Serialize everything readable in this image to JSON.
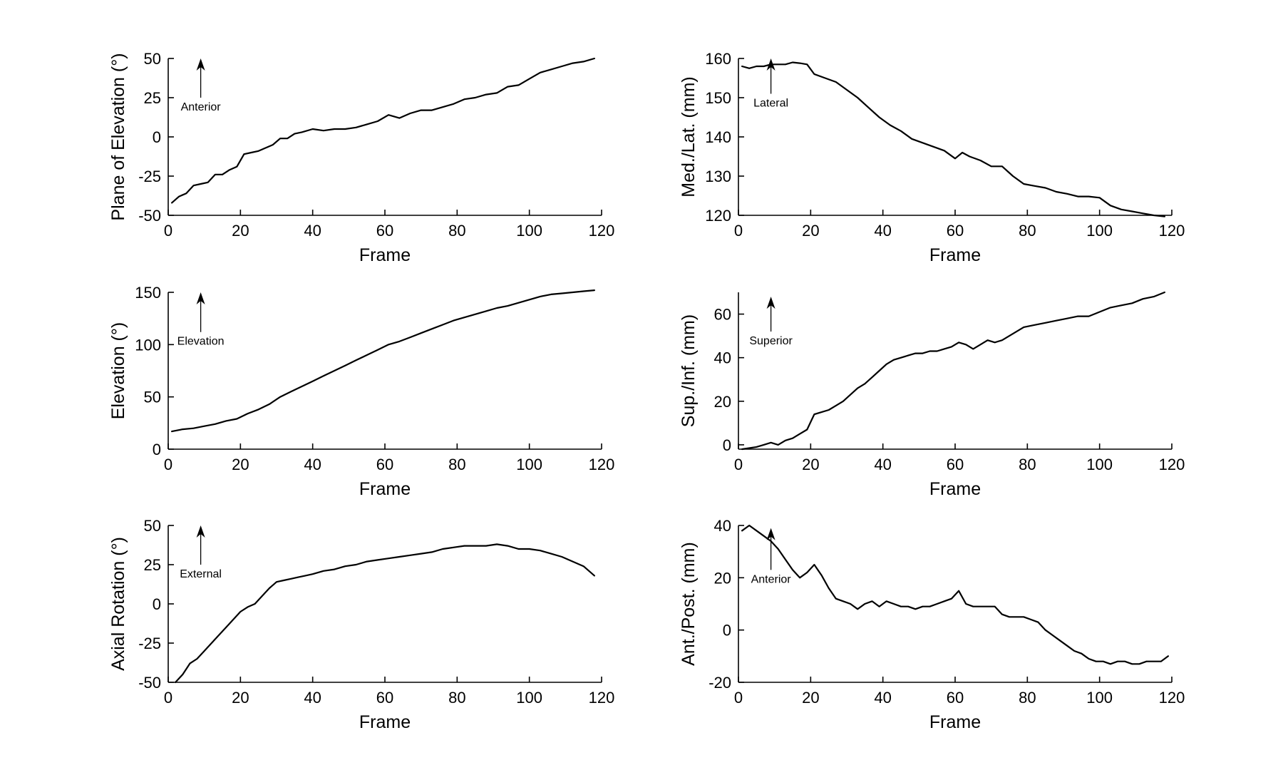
{
  "chart_data": [
    {
      "type": "line",
      "title": "",
      "xlabel": "Frame",
      "ylabel": "Plane of Elevation (°)",
      "xlim": [
        0,
        120
      ],
      "ylim": [
        -50,
        50
      ],
      "xticks": [
        0,
        20,
        40,
        60,
        80,
        100,
        120
      ],
      "yticks": [
        -50,
        -25,
        0,
        25,
        50
      ],
      "annotation": {
        "label": "Anterior",
        "x": 9,
        "y_from": 25,
        "y_to": 50
      },
      "series": [
        {
          "name": "Plane of Elevation",
          "x": [
            1,
            3,
            5,
            7,
            9,
            11,
            13,
            15,
            17,
            19,
            21,
            23,
            25,
            27,
            29,
            31,
            33,
            35,
            37,
            40,
            43,
            46,
            49,
            52,
            55,
            58,
            61,
            64,
            67,
            70,
            73,
            76,
            79,
            82,
            85,
            88,
            91,
            94,
            97,
            100,
            103,
            106,
            109,
            112,
            115,
            118
          ],
          "y": [
            -42,
            -38,
            -36,
            -31,
            -30,
            -29,
            -24,
            -24,
            -21,
            -19,
            -11,
            -10,
            -9,
            -7,
            -5,
            -1,
            -1,
            2,
            3,
            5,
            4,
            5,
            5,
            6,
            8,
            10,
            14,
            12,
            15,
            17,
            17,
            19,
            21,
            24,
            25,
            27,
            28,
            32,
            33,
            37,
            41,
            43,
            45,
            47,
            48,
            50
          ]
        }
      ]
    },
    {
      "type": "line",
      "title": "",
      "xlabel": "Frame",
      "ylabel": "Med./Lat. (mm)",
      "xlim": [
        0,
        120
      ],
      "ylim": [
        120,
        160
      ],
      "xticks": [
        0,
        20,
        40,
        60,
        80,
        100,
        120
      ],
      "yticks": [
        120,
        130,
        140,
        150,
        160
      ],
      "annotation": {
        "label": "Lateral",
        "x": 9,
        "y_from": 151,
        "y_to": 160
      },
      "series": [
        {
          "name": "Med./Lat.",
          "x": [
            1,
            3,
            5,
            7,
            9,
            11,
            13,
            15,
            17,
            19,
            21,
            24,
            27,
            30,
            33,
            36,
            39,
            42,
            45,
            48,
            51,
            54,
            57,
            60,
            62,
            64,
            67,
            70,
            73,
            76,
            79,
            82,
            85,
            88,
            91,
            94,
            97,
            100,
            103,
            106,
            109,
            112,
            115,
            118
          ],
          "y": [
            158,
            157.5,
            158,
            158,
            158.5,
            158.5,
            158.5,
            159,
            158.8,
            158.5,
            156,
            155,
            154,
            152,
            150,
            147.5,
            145,
            143,
            141.5,
            139.5,
            138.5,
            137.5,
            136.5,
            134.5,
            136,
            135,
            134,
            132.5,
            132.5,
            130,
            128,
            127.5,
            127,
            126,
            125.5,
            124.8,
            124.8,
            124.5,
            122.5,
            121.5,
            121,
            120.5,
            120,
            119.7
          ]
        }
      ]
    },
    {
      "type": "line",
      "title": "",
      "xlabel": "Frame",
      "ylabel": "Elevation (°)",
      "xlim": [
        0,
        120
      ],
      "ylim": [
        0,
        150
      ],
      "xticks": [
        0,
        20,
        40,
        60,
        80,
        100,
        120
      ],
      "yticks": [
        0,
        50,
        100,
        150
      ],
      "annotation": {
        "label": "Elevation",
        "x": 9,
        "y_from": 112,
        "y_to": 150
      },
      "series": [
        {
          "name": "Elevation",
          "x": [
            1,
            4,
            7,
            10,
            13,
            16,
            19,
            22,
            25,
            28,
            31,
            34,
            37,
            40,
            43,
            46,
            49,
            52,
            55,
            58,
            61,
            64,
            67,
            70,
            73,
            76,
            79,
            82,
            85,
            88,
            91,
            94,
            97,
            100,
            103,
            106,
            109,
            112,
            115,
            118
          ],
          "y": [
            17,
            19,
            20,
            22,
            24,
            27,
            29,
            34,
            38,
            43,
            50,
            55,
            60,
            65,
            70,
            75,
            80,
            85,
            90,
            95,
            100,
            103,
            107,
            111,
            115,
            119,
            123,
            126,
            129,
            132,
            135,
            137,
            140,
            143,
            146,
            148,
            149,
            150,
            151,
            152
          ]
        }
      ]
    },
    {
      "type": "line",
      "title": "",
      "xlabel": "Frame",
      "ylabel": "Sup./Inf. (mm)",
      "xlim": [
        0,
        120
      ],
      "ylim": [
        -2,
        70
      ],
      "xticks": [
        0,
        20,
        40,
        60,
        80,
        100,
        120
      ],
      "yticks": [
        0,
        20,
        40,
        60
      ],
      "annotation": {
        "label": "Superior",
        "x": 9,
        "y_from": 52,
        "y_to": 68
      },
      "series": [
        {
          "name": "Sup./Inf.",
          "x": [
            1,
            3,
            5,
            7,
            9,
            11,
            13,
            15,
            17,
            19,
            21,
            23,
            25,
            27,
            29,
            31,
            33,
            35,
            37,
            39,
            41,
            43,
            45,
            47,
            49,
            51,
            53,
            55,
            57,
            59,
            61,
            63,
            65,
            67,
            69,
            71,
            73,
            76,
            79,
            82,
            85,
            88,
            91,
            94,
            97,
            100,
            103,
            106,
            109,
            112,
            115,
            118
          ],
          "y": [
            -2,
            -1.5,
            -1,
            0,
            1,
            0,
            2,
            3,
            5,
            7,
            14,
            15,
            16,
            18,
            20,
            23,
            26,
            28,
            31,
            34,
            37,
            39,
            40,
            41,
            42,
            42,
            43,
            43,
            44,
            45,
            47,
            46,
            44,
            46,
            48,
            47,
            48,
            51,
            54,
            55,
            56,
            57,
            58,
            59,
            59,
            61,
            63,
            64,
            65,
            67,
            68,
            70
          ]
        }
      ]
    },
    {
      "type": "line",
      "title": "",
      "xlabel": "Frame",
      "ylabel": "Axial Rotation (°)",
      "xlim": [
        0,
        120
      ],
      "ylim": [
        -50,
        50
      ],
      "xticks": [
        0,
        20,
        40,
        60,
        80,
        100,
        120
      ],
      "yticks": [
        -50,
        -25,
        0,
        25,
        50
      ],
      "annotation": {
        "label": "External",
        "x": 9,
        "y_from": 25,
        "y_to": 50
      },
      "series": [
        {
          "name": "Axial Rotation",
          "x": [
            2,
            4,
            6,
            8,
            10,
            12,
            14,
            16,
            18,
            20,
            22,
            24,
            26,
            28,
            30,
            32,
            34,
            36,
            38,
            40,
            43,
            46,
            49,
            52,
            55,
            58,
            61,
            64,
            67,
            70,
            73,
            76,
            79,
            82,
            85,
            88,
            91,
            94,
            97,
            100,
            103,
            106,
            109,
            112,
            115,
            118
          ],
          "y": [
            -50,
            -45,
            -38,
            -35,
            -30,
            -25,
            -20,
            -15,
            -10,
            -5,
            -2,
            0,
            5,
            10,
            14,
            15,
            16,
            17,
            18,
            19,
            21,
            22,
            24,
            25,
            27,
            28,
            29,
            30,
            31,
            32,
            33,
            35,
            36,
            37,
            37,
            37,
            38,
            37,
            35,
            35,
            34,
            32,
            30,
            27,
            24,
            18
          ]
        }
      ]
    },
    {
      "type": "line",
      "title": "",
      "xlabel": "Frame",
      "ylabel": "Ant./Post. (mm)",
      "xlim": [
        0,
        120
      ],
      "ylim": [
        -20,
        40
      ],
      "xticks": [
        0,
        20,
        40,
        60,
        80,
        100,
        120
      ],
      "yticks": [
        -20,
        0,
        20,
        40
      ],
      "annotation": {
        "label": "Anterior",
        "x": 9,
        "y_from": 23,
        "y_to": 39
      },
      "series": [
        {
          "name": "Ant./Post.",
          "x": [
            1,
            3,
            5,
            7,
            9,
            11,
            13,
            15,
            17,
            19,
            21,
            23,
            25,
            27,
            29,
            31,
            33,
            35,
            37,
            39,
            41,
            43,
            45,
            47,
            49,
            51,
            53,
            55,
            57,
            59,
            61,
            63,
            65,
            67,
            69,
            71,
            73,
            75,
            77,
            79,
            81,
            83,
            85,
            87,
            89,
            91,
            93,
            95,
            97,
            99,
            101,
            103,
            105,
            107,
            109,
            111,
            113,
            115,
            117,
            119
          ],
          "y": [
            38,
            40,
            38,
            36,
            34,
            31,
            27,
            23,
            20,
            22,
            25,
            21,
            16,
            12,
            11,
            10,
            8,
            10,
            11,
            9,
            11,
            10,
            9,
            9,
            8,
            9,
            9,
            10,
            11,
            12,
            15,
            10,
            9,
            9,
            9,
            9,
            6,
            5,
            5,
            5,
            4,
            3,
            0,
            -2,
            -4,
            -6,
            -8,
            -9,
            -11,
            -12,
            -12,
            -13,
            -12,
            -12,
            -13,
            -13,
            -12,
            -12,
            -12,
            -10
          ]
        }
      ]
    }
  ]
}
